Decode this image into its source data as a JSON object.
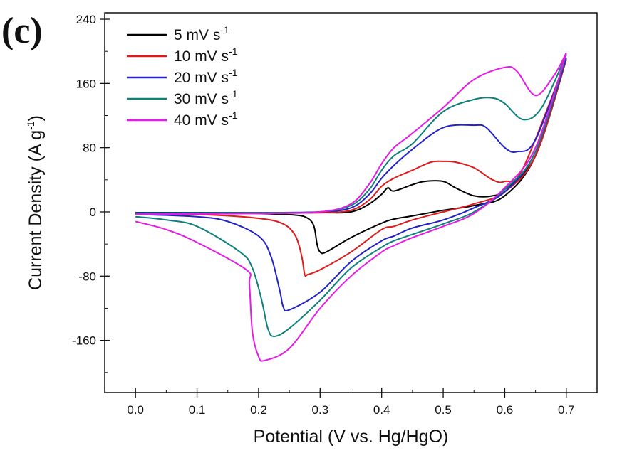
{
  "panel_label": "(c)",
  "chart_data": {
    "type": "line",
    "xlabel": "Potential (V vs. Hg/HgO)",
    "ylabel": "Current Density (A g",
    "ylabel_sup": "-1",
    "ylabel_end": ")",
    "xlim": [
      -0.05,
      0.75
    ],
    "ylim": [
      -225,
      248
    ],
    "xticks": [
      0.0,
      0.1,
      0.2,
      0.3,
      0.4,
      0.5,
      0.6,
      0.7
    ],
    "xtick_labels": [
      "0.0",
      "0.1",
      "0.2",
      "0.3",
      "0.4",
      "0.5",
      "0.6",
      "0.7"
    ],
    "yticks": [
      -160,
      -80,
      0,
      80,
      160,
      240
    ],
    "ytick_labels": [
      "-160",
      "-80",
      "0",
      "80",
      "160",
      "240"
    ],
    "grid": false,
    "legend_position": "top-left",
    "series": [
      {
        "name": "5 mV s",
        "name_sup": "-1",
        "color": "#000000",
        "anodic": [
          [
            0.0,
            -1
          ],
          [
            0.1,
            -1
          ],
          [
            0.2,
            -1
          ],
          [
            0.3,
            -1
          ],
          [
            0.35,
            0
          ],
          [
            0.38,
            10
          ],
          [
            0.4,
            22
          ],
          [
            0.41,
            30
          ],
          [
            0.42,
            26
          ],
          [
            0.45,
            34
          ],
          [
            0.47,
            38
          ],
          [
            0.5,
            38
          ],
          [
            0.52,
            30
          ],
          [
            0.55,
            20
          ],
          [
            0.58,
            20
          ],
          [
            0.6,
            28
          ],
          [
            0.65,
            70
          ],
          [
            0.7,
            190
          ]
        ],
        "cathodic": [
          [
            0.7,
            190
          ],
          [
            0.65,
            70
          ],
          [
            0.6,
            20
          ],
          [
            0.55,
            8
          ],
          [
            0.5,
            2
          ],
          [
            0.45,
            -5
          ],
          [
            0.42,
            -9
          ],
          [
            0.4,
            -14
          ],
          [
            0.35,
            -32
          ],
          [
            0.31,
            -50
          ],
          [
            0.3,
            -50
          ],
          [
            0.295,
            -40
          ],
          [
            0.29,
            -18
          ],
          [
            0.28,
            -8
          ],
          [
            0.26,
            -4
          ],
          [
            0.2,
            -2
          ],
          [
            0.1,
            -1
          ],
          [
            0.0,
            -1
          ]
        ]
      },
      {
        "name": "10 mV s",
        "name_sup": "-1",
        "color": "#e0191a",
        "anodic": [
          [
            0.0,
            -1
          ],
          [
            0.2,
            -1
          ],
          [
            0.3,
            -1
          ],
          [
            0.35,
            2
          ],
          [
            0.38,
            15
          ],
          [
            0.4,
            32
          ],
          [
            0.42,
            42
          ],
          [
            0.45,
            52
          ],
          [
            0.48,
            62
          ],
          [
            0.5,
            63
          ],
          [
            0.52,
            62
          ],
          [
            0.55,
            55
          ],
          [
            0.58,
            40
          ],
          [
            0.6,
            38
          ],
          [
            0.63,
            55
          ],
          [
            0.7,
            190
          ]
        ],
        "cathodic": [
          [
            0.7,
            190
          ],
          [
            0.65,
            70
          ],
          [
            0.6,
            25
          ],
          [
            0.55,
            10
          ],
          [
            0.5,
            0
          ],
          [
            0.45,
            -10
          ],
          [
            0.42,
            -18
          ],
          [
            0.4,
            -22
          ],
          [
            0.35,
            -50
          ],
          [
            0.3,
            -72
          ],
          [
            0.28,
            -78
          ],
          [
            0.275,
            -78
          ],
          [
            0.27,
            -55
          ],
          [
            0.26,
            -30
          ],
          [
            0.24,
            -15
          ],
          [
            0.2,
            -8
          ],
          [
            0.1,
            -3
          ],
          [
            0.0,
            -2
          ]
        ]
      },
      {
        "name": "20 mV s",
        "name_sup": "-1",
        "color": "#2222c8",
        "anodic": [
          [
            0.0,
            -1
          ],
          [
            0.2,
            -1
          ],
          [
            0.3,
            0
          ],
          [
            0.35,
            5
          ],
          [
            0.38,
            22
          ],
          [
            0.4,
            42
          ],
          [
            0.42,
            58
          ],
          [
            0.45,
            78
          ],
          [
            0.5,
            105
          ],
          [
            0.55,
            108
          ],
          [
            0.57,
            105
          ],
          [
            0.6,
            80
          ],
          [
            0.62,
            75
          ],
          [
            0.65,
            90
          ],
          [
            0.7,
            192
          ]
        ],
        "cathodic": [
          [
            0.7,
            192
          ],
          [
            0.65,
            75
          ],
          [
            0.6,
            25
          ],
          [
            0.55,
            5
          ],
          [
            0.5,
            -10
          ],
          [
            0.45,
            -20
          ],
          [
            0.42,
            -30
          ],
          [
            0.4,
            -36
          ],
          [
            0.35,
            -62
          ],
          [
            0.3,
            -100
          ],
          [
            0.25,
            -122
          ],
          [
            0.24,
            -118
          ],
          [
            0.235,
            -100
          ],
          [
            0.22,
            -55
          ],
          [
            0.2,
            -30
          ],
          [
            0.15,
            -12
          ],
          [
            0.1,
            -6
          ],
          [
            0.0,
            -3
          ]
        ]
      },
      {
        "name": "30 mV s",
        "name_sup": "-1",
        "color": "#0d807b",
        "anodic": [
          [
            0.0,
            -2
          ],
          [
            0.2,
            -1
          ],
          [
            0.3,
            0
          ],
          [
            0.35,
            8
          ],
          [
            0.38,
            28
          ],
          [
            0.4,
            52
          ],
          [
            0.42,
            70
          ],
          [
            0.45,
            85
          ],
          [
            0.5,
            125
          ],
          [
            0.55,
            140
          ],
          [
            0.58,
            142
          ],
          [
            0.6,
            135
          ],
          [
            0.63,
            115
          ],
          [
            0.66,
            130
          ],
          [
            0.7,
            196
          ]
        ],
        "cathodic": [
          [
            0.7,
            196
          ],
          [
            0.65,
            75
          ],
          [
            0.6,
            28
          ],
          [
            0.55,
            0
          ],
          [
            0.5,
            -15
          ],
          [
            0.45,
            -28
          ],
          [
            0.42,
            -36
          ],
          [
            0.4,
            -44
          ],
          [
            0.35,
            -70
          ],
          [
            0.3,
            -110
          ],
          [
            0.25,
            -145
          ],
          [
            0.225,
            -155
          ],
          [
            0.215,
            -145
          ],
          [
            0.205,
            -110
          ],
          [
            0.19,
            -70
          ],
          [
            0.17,
            -50
          ],
          [
            0.1,
            -18
          ],
          [
            0.05,
            -10
          ],
          [
            0.0,
            -6
          ]
        ]
      },
      {
        "name": "40 mV s",
        "name_sup": "-1",
        "color": "#e619e6",
        "anodic": [
          [
            0.0,
            -3
          ],
          [
            0.2,
            -2
          ],
          [
            0.3,
            0
          ],
          [
            0.35,
            10
          ],
          [
            0.38,
            35
          ],
          [
            0.4,
            60
          ],
          [
            0.42,
            80
          ],
          [
            0.45,
            98
          ],
          [
            0.5,
            130
          ],
          [
            0.55,
            165
          ],
          [
            0.6,
            180
          ],
          [
            0.62,
            175
          ],
          [
            0.65,
            145
          ],
          [
            0.68,
            170
          ],
          [
            0.7,
            198
          ]
        ],
        "cathodic": [
          [
            0.7,
            198
          ],
          [
            0.65,
            80
          ],
          [
            0.6,
            30
          ],
          [
            0.55,
            -2
          ],
          [
            0.5,
            -18
          ],
          [
            0.45,
            -32
          ],
          [
            0.42,
            -42
          ],
          [
            0.4,
            -50
          ],
          [
            0.35,
            -80
          ],
          [
            0.3,
            -120
          ],
          [
            0.25,
            -170
          ],
          [
            0.21,
            -185
          ],
          [
            0.2,
            -180
          ],
          [
            0.19,
            -150
          ],
          [
            0.185,
            -90
          ],
          [
            0.18,
            -72
          ],
          [
            0.1,
            -38
          ],
          [
            0.05,
            -22
          ],
          [
            0.0,
            -12
          ]
        ]
      }
    ]
  }
}
